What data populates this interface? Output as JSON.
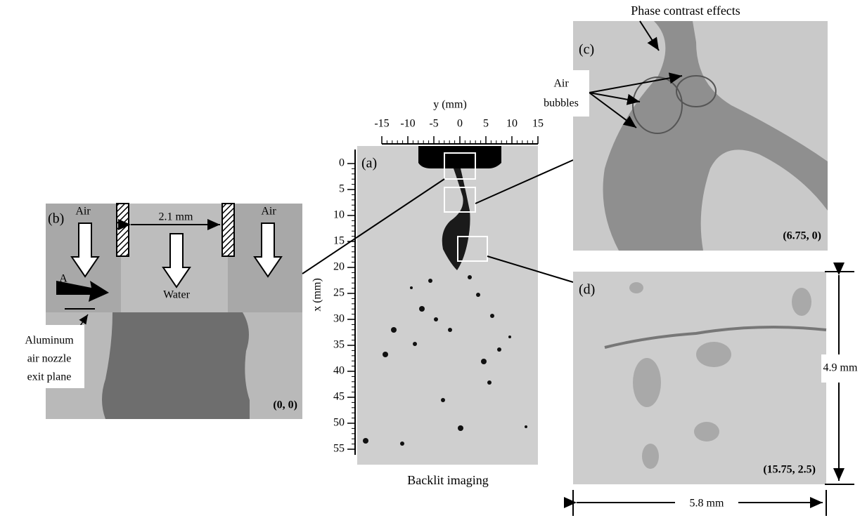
{
  "panel_a": {
    "label": "(a)",
    "caption": "Backlit imaging",
    "y_axis": {
      "label": "y (mm)",
      "ticks": [
        -15,
        -10,
        -5,
        0,
        5,
        10,
        15
      ]
    },
    "x_axis": {
      "label": "x (mm)",
      "ticks": [
        0,
        5,
        10,
        15,
        20,
        25,
        30,
        35,
        40,
        45,
        50,
        55
      ]
    }
  },
  "panel_b": {
    "label": "(b)",
    "air_left": "Air",
    "air_right": "Air",
    "gap": "2.1 mm",
    "water": "Water",
    "arrow_label": "A",
    "plane_note": [
      "Aluminum",
      "air nozzle",
      "exit plane"
    ],
    "coordinates": "(0, 0)"
  },
  "panel_c": {
    "label": "(c)",
    "phase_note": "Phase contrast effects",
    "bubble_note": [
      "Air",
      "bubbles"
    ],
    "coordinates": "(6.75, 0)"
  },
  "panel_d": {
    "label": "(d)",
    "height": "4.9 mm",
    "width": "5.8 mm",
    "coordinates": "(15.75, 2.5)"
  }
}
